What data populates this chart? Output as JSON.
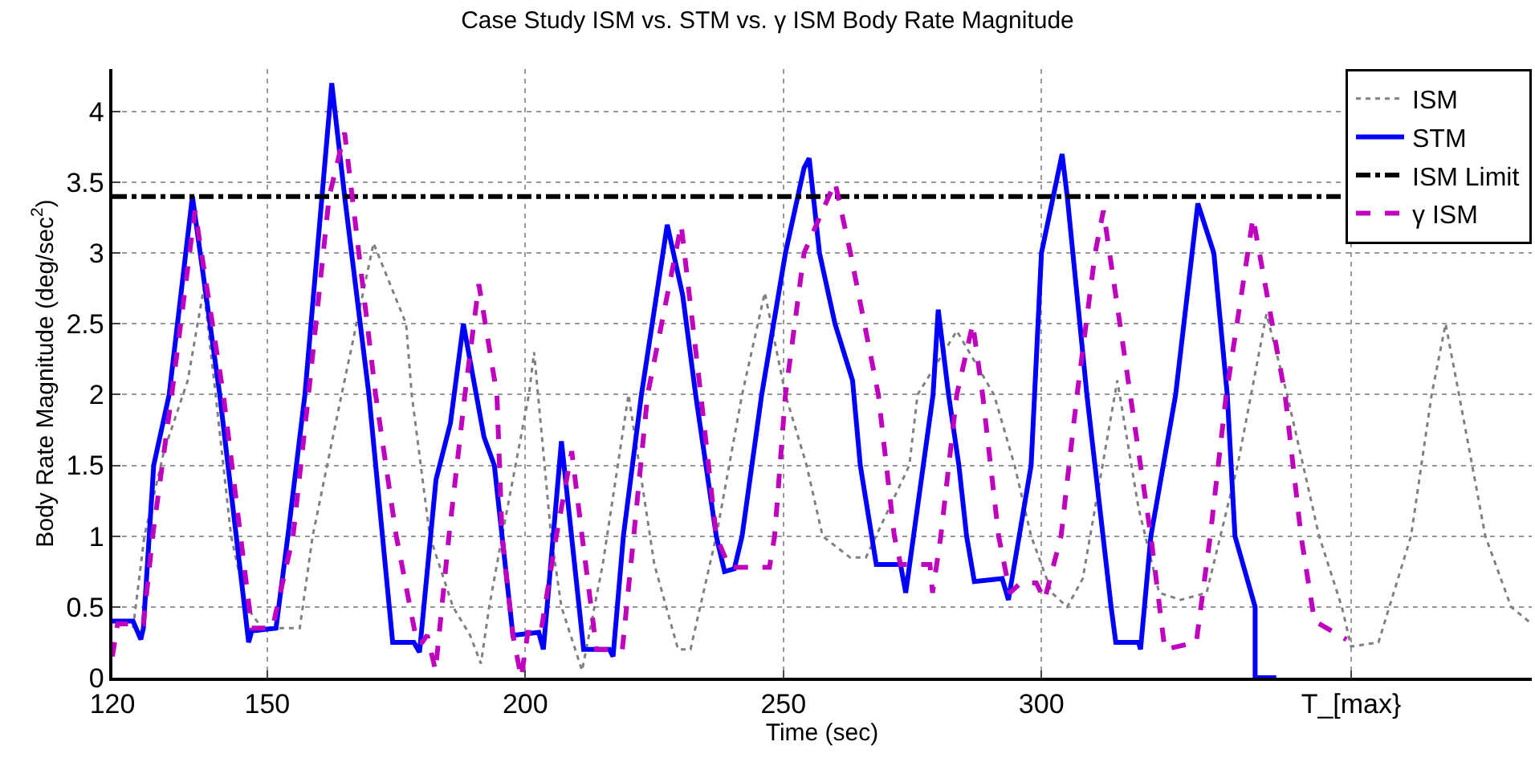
{
  "chart_data": {
    "type": "line",
    "title": "Case Study ISM vs. STM vs. γ ISM Body Rate Magnitude",
    "xlabel": "Time (sec)",
    "ylabel": "Body Rate Magnitude (deg/sec$^{2}$)",
    "xlim": [
      120,
      395
    ],
    "xticks": [
      120,
      150,
      200,
      250,
      300,
      {
        "value": 360,
        "label": "T_[max}"
      }
    ],
    "ylim": [
      0,
      4.3
    ],
    "yticks": [
      0,
      0.5,
      1,
      1.5,
      2,
      2.5,
      3,
      3.5,
      4
    ],
    "grid": true,
    "legend": "top right",
    "marker": "none",
    "series": [
      {
        "name": "ISM",
        "color": "#808080",
        "line_style": "dotted",
        "x": [
          124,
          126.2,
          130,
          134.6,
          137.7,
          140,
          143,
          146,
          149,
          156.3,
          158.8,
          164.4,
          170.6,
          176.9,
          178,
          181.5,
          186,
          189.3,
          191.4,
          193,
          195.5,
          200.7,
          201.7,
          205,
          207,
          211,
          215,
          220,
          225,
          229.6,
          232,
          237,
          242,
          246.4,
          250.4,
          254.5,
          257.6,
          262.9,
          266,
          274.4,
          276,
          283.6,
          290.8,
          294.8,
          298,
          302,
          305,
          308,
          314.7,
          318.8,
          322.8,
          327,
          332,
          338,
          343.6,
          347.6,
          353.8,
          358.2,
          360,
          365.3,
          371.6,
          375.6,
          378.3,
          380.9,
          386,
          391,
          395
        ],
        "values": [
          0.35,
          1.0,
          1.6,
          2.1,
          2.75,
          2.0,
          1.0,
          0.5,
          0.35,
          0.35,
          1.0,
          2.0,
          3.07,
          2.5,
          2.0,
          1.0,
          0.5,
          0.3,
          0.1,
          0.5,
          1.0,
          2.0,
          2.3,
          1.0,
          0.5,
          0.05,
          0.8,
          2.0,
          0.8,
          0.2,
          0.2,
          1.0,
          2.0,
          2.72,
          2.0,
          1.5,
          1.0,
          0.85,
          0.85,
          1.5,
          2.0,
          2.45,
          2.0,
          1.5,
          1.0,
          0.6,
          0.5,
          0.7,
          2.1,
          1.2,
          0.6,
          0.55,
          0.6,
          1.5,
          2.57,
          2.0,
          1.0,
          0.5,
          0.22,
          0.25,
          1.0,
          2.0,
          2.5,
          2.0,
          1.0,
          0.5,
          0.38
        ]
      },
      {
        "name": "STM",
        "color": "#0000ff",
        "line_style": "solid",
        "x": [
          120,
          124,
          125.5,
          126,
          128,
          131,
          135.5,
          140.8,
          146.4,
          147,
          151.7,
          154,
          157.3,
          162.5,
          165,
          169.7,
          174.3,
          178.4,
          179.5,
          182.7,
          185.5,
          188,
          192,
          194,
          197.6,
          202.6,
          203.5,
          207,
          211.3,
          216.3,
          217,
          219,
          222.5,
          227.5,
          230.5,
          233,
          237,
          238.6,
          240.5,
          242,
          245.8,
          250.4,
          254,
          255,
          257,
          260,
          263.4,
          264.9,
          268,
          272.7,
          273.7,
          279,
          280,
          282,
          284,
          285.5,
          287,
          292.4,
          293.6,
          298,
          300,
          304,
          305,
          308.8,
          313.5,
          314.4,
          318.8,
          319.2,
          321.2,
          326,
          330.3,
          333.4,
          336,
          337.5,
          341.4,
          341.4,
          345.5
        ],
        "values": [
          0.4,
          0.4,
          0.27,
          0.35,
          1.5,
          2.0,
          3.4,
          2.0,
          0.25,
          0.33,
          0.35,
          1.0,
          2.0,
          4.2,
          3.4,
          2.0,
          0.25,
          0.25,
          0.18,
          1.4,
          1.8,
          2.5,
          1.7,
          1.5,
          0.3,
          0.32,
          0.2,
          1.67,
          0.2,
          0.2,
          0.15,
          1.0,
          2.0,
          3.2,
          2.7,
          2.0,
          1.0,
          0.75,
          0.77,
          1.0,
          2.0,
          3.0,
          3.6,
          3.67,
          3.0,
          2.5,
          2.1,
          1.5,
          0.8,
          0.8,
          0.6,
          2.0,
          2.6,
          2.0,
          1.5,
          1.0,
          0.68,
          0.7,
          0.55,
          1.5,
          3.0,
          3.7,
          3.4,
          2.0,
          0.5,
          0.25,
          0.25,
          0.2,
          1.0,
          2.0,
          3.35,
          3.0,
          2.0,
          1.0,
          0.5,
          0,
          0
        ]
      },
      {
        "name": "γ ISM",
        "color": "#bf00bf",
        "line_style": "dashed",
        "x": [
          120,
          121,
          126,
          127.8,
          131.5,
          136,
          141.5,
          147,
          151,
          155,
          158,
          162,
          165,
          171,
          175,
          179,
          180,
          181,
          182.6,
          185.2,
          188.3,
          191,
          194.5,
          195.5,
          197.6,
          199.2,
          200.5,
          203,
          206,
          209,
          211,
          213.8,
          218.8,
          221,
          223.7,
          230.2,
          234,
          237,
          239.5,
          247.3,
          248.3,
          250.4,
          254,
          260,
          263,
          268.4,
          271.5,
          272.7,
          278.4,
          278.9,
          280.5,
          283.6,
          286.7,
          288.6,
          291.7,
          293.9,
          296,
          299,
          300.6,
          303.8,
          306.9,
          310.4,
          312,
          317.2,
          321.2,
          323.9,
          330,
          332.7,
          335.8,
          341,
          347.2,
          350.3,
          352.9,
          359.1
        ],
        "values": [
          0.15,
          0.38,
          0.38,
          1.0,
          2.0,
          3.3,
          2.0,
          0.35,
          0.35,
          1.0,
          2.0,
          3.4,
          3.85,
          2.0,
          1.0,
          0.25,
          0.25,
          0.3,
          0.05,
          1.0,
          2.0,
          2.78,
          2.0,
          1.0,
          0.3,
          0,
          0.32,
          0.32,
          1.0,
          1.6,
          1.0,
          0.2,
          0.2,
          1.0,
          2.0,
          3.2,
          2.0,
          1.0,
          0.78,
          0.78,
          1.0,
          2.0,
          3.0,
          3.5,
          3.0,
          2.0,
          1.0,
          0.8,
          0.8,
          0.6,
          1.0,
          2.0,
          2.5,
          2.0,
          1.0,
          0.6,
          0.67,
          0.67,
          0.55,
          1.0,
          2.0,
          3.0,
          3.3,
          2.0,
          1.0,
          0.2,
          0.25,
          1.0,
          2.0,
          3.25,
          2.0,
          1.0,
          0.4,
          0.27
        ]
      }
    ],
    "ref_lines": [
      {
        "axis": "y",
        "value": 3.4,
        "label": "ISM Limit",
        "color": "#000000",
        "line_style": "dashdot"
      }
    ]
  }
}
